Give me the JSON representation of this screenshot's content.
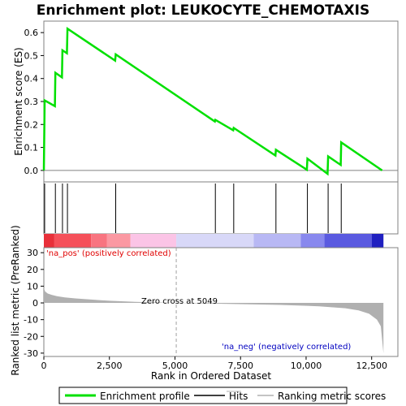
{
  "chart_data": {
    "type": "line",
    "title": "Enrichment plot: LEUKOCYTE_CHEMOTAXIS",
    "x_range": [
      0,
      13500
    ],
    "x_ticks": [
      0,
      2500,
      5000,
      7500,
      10000,
      12500
    ],
    "x_tick_labels": [
      "0",
      "2,500",
      "5,000",
      "7,500",
      "10,000",
      "12,500"
    ],
    "xlabel": "Rank in Ordered Dataset",
    "top_panel": {
      "ylabel": "Enrichment score (ES)",
      "ylim": [
        -0.05,
        0.65
      ],
      "y_ticks": [
        0.0,
        0.1,
        0.2,
        0.3,
        0.4,
        0.5,
        0.6
      ],
      "y_tick_labels": [
        "0.0",
        "0.1",
        "0.2",
        "0.3",
        "0.4",
        "0.5",
        "0.6"
      ],
      "series": [
        {
          "name": "Enrichment profile",
          "color": "#00e000",
          "x": [
            0,
            30,
            420,
            440,
            690,
            710,
            880,
            900,
            2720,
            2740,
            6520,
            6540,
            7220,
            7240,
            8830,
            8850,
            10030,
            10050,
            10820,
            10840,
            11320,
            11340,
            12900
          ],
          "y": [
            0.0,
            0.305,
            0.28,
            0.425,
            0.405,
            0.523,
            0.51,
            0.617,
            0.478,
            0.505,
            0.213,
            0.22,
            0.175,
            0.185,
            0.065,
            0.09,
            0.003,
            0.051,
            -0.015,
            0.061,
            0.024,
            0.122,
            0.0
          ]
        }
      ]
    },
    "hits": [
      30,
      440,
      710,
      900,
      2740,
      6540,
      7240,
      8850,
      10050,
      10840,
      11340
    ],
    "color_bar": {
      "segments": [
        {
          "from": 0,
          "to": 400,
          "color": "#e8303a"
        },
        {
          "from": 400,
          "to": 1800,
          "color": "#f5505a"
        },
        {
          "from": 1800,
          "to": 2400,
          "color": "#f87480"
        },
        {
          "from": 2400,
          "to": 3300,
          "color": "#fb98a2"
        },
        {
          "from": 3300,
          "to": 5049,
          "color": "#fbc4e6"
        },
        {
          "from": 5049,
          "to": 8000,
          "color": "#d8d8f8"
        },
        {
          "from": 8000,
          "to": 9800,
          "color": "#b8b8f4"
        },
        {
          "from": 9800,
          "to": 10700,
          "color": "#8888ee"
        },
        {
          "from": 10700,
          "to": 12500,
          "color": "#5a5ae0"
        },
        {
          "from": 12500,
          "to": 12950,
          "color": "#2020c0"
        }
      ]
    },
    "bottom_panel": {
      "ylabel": "Ranked list metric (PreRanked)",
      "ylim": [
        -32,
        33
      ],
      "y_ticks": [
        -30,
        -20,
        -10,
        0,
        10,
        20,
        30
      ],
      "y_tick_labels": [
        "-30",
        "-20",
        "-10",
        "0",
        "10",
        "20",
        "30"
      ],
      "metric_x": [
        0,
        50,
        150,
        300,
        500,
        800,
        1200,
        1800,
        2500,
        3500,
        5049,
        7000,
        9000,
        10500,
        11500,
        12000,
        12400,
        12700,
        12850,
        12900,
        12950
      ],
      "metric_y": [
        9,
        6.8,
        5.6,
        4.8,
        4.0,
        3.3,
        2.7,
        2.0,
        1.3,
        0.6,
        0,
        -0.6,
        -1.2,
        -2.0,
        -3.2,
        -4.5,
        -6.5,
        -10,
        -14,
        -22,
        -30
      ],
      "fill_color": "#b0b0b0",
      "zero_cross_label": "Zero cross at 5049",
      "zero_cross_x": 5049,
      "pos_label": "'na_pos' (positively correlated)",
      "pos_color": "#e00000",
      "neg_label": "'na_neg' (negatively correlated)",
      "neg_color": "#0000c0"
    },
    "legend": [
      {
        "label": "Enrichment profile",
        "color": "#00e000"
      },
      {
        "label": "Hits",
        "color": "#000000"
      },
      {
        "label": "Ranking metric scores",
        "color": "#b0b0b0"
      }
    ]
  }
}
